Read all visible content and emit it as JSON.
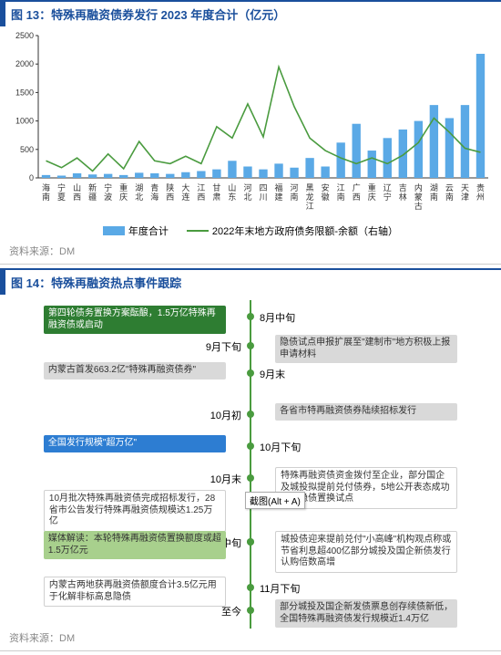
{
  "fig13": {
    "title": "图 13：特殊再融资债券发行 2023 年度合计（亿元）",
    "source": "资料来源：DM",
    "chart": {
      "type": "bar+line",
      "categories": [
        "海南",
        "宁夏",
        "山西",
        "新疆",
        "宁波",
        "重庆",
        "湖北",
        "青海",
        "陕西",
        "大连",
        "江西",
        "甘肃",
        "山东",
        "河北",
        "四川",
        "福建",
        "河南",
        "黑龙江",
        "安徽",
        "江南",
        "广西",
        "重庆",
        "辽宁",
        "吉林",
        "内蒙古",
        "湖南",
        "云南",
        "天津",
        "贵州"
      ],
      "bar_values": [
        50,
        40,
        80,
        60,
        70,
        50,
        90,
        80,
        70,
        100,
        120,
        150,
        300,
        200,
        150,
        250,
        180,
        350,
        200,
        620,
        950,
        480,
        700,
        850,
        1000,
        1280,
        1050,
        1280,
        2180
      ],
      "line_values": [
        300,
        180,
        350,
        120,
        420,
        160,
        640,
        300,
        250,
        380,
        250,
        900,
        700,
        1300,
        720,
        1950,
        1250,
        700,
        480,
        350,
        250,
        350,
        250,
        400,
        620,
        1050,
        800,
        520,
        450
      ],
      "bar_color": "#5aa9e6",
      "line_color": "#4a9b3f",
      "ylim": [
        0,
        2500
      ],
      "ytick_step": 500,
      "label_fontsize": 9,
      "axis_color": "#333",
      "grid": false
    },
    "legend": {
      "bar": "年度合计",
      "line": "2022年末地方政府债务限额-余额（右轴）"
    }
  },
  "fig14": {
    "title": "图 14：特殊再融资热点事件跟踪",
    "source": "资料来源：DM",
    "timeline": {
      "line_color": "#4a9b3f",
      "node_color": "#4a9b3f",
      "events": [
        {
          "y": 18,
          "date": "8月中旬",
          "date_side": "right",
          "box_side": "left",
          "style": "box-darkgreen",
          "text": "第四轮债务置换方案酝酿，1.5万亿特殊再融资债或启动"
        },
        {
          "y": 50,
          "date": "9月下旬",
          "date_side": "left",
          "box_side": "right",
          "style": "box-gray",
          "text": "隐债试点申报扩展至\"建制市\"地方积极上报申请材料"
        },
        {
          "y": 80,
          "date": "9月末",
          "date_side": "right",
          "box_side": "left",
          "style": "box-gray",
          "text": "内蒙古首发663.2亿\"特殊再融资债券\""
        },
        {
          "y": 125,
          "date": "10月初",
          "date_side": "left",
          "box_side": "right",
          "style": "box-gray",
          "text": "各省市特再融资债券陆续招标发行"
        },
        {
          "y": 160,
          "date": "10月下旬",
          "date_side": "right",
          "box_side": "left",
          "style": "box-blue",
          "text": "全国发行规模\"超万亿\""
        },
        {
          "y": 195,
          "date": "10月末",
          "date_side": "left",
          "box_side": "right",
          "style": "box-white",
          "text": "特殊再融资债资金拨付至企业，部分国企及城投拟提前兑付债券，5地公开表态成功纳入隐债置换试点"
        },
        {
          "y": 220,
          "date": "",
          "date_side": "right",
          "box_side": "left",
          "style": "box-white",
          "text": "10月批次特殊再融资债完成招标发行，28省市公告发行特殊再融资债规模达1.25万亿"
        },
        {
          "y": 265,
          "date": "11月中旬",
          "date_side": "left",
          "box_side": "right",
          "style": "box-white",
          "text": "城投债迎来提前兑付\"小高峰\"机构观点称或节省利息超400亿部分城投及国企新债发行认购倍数高增"
        },
        {
          "y": 265,
          "date": "",
          "date_side": "right",
          "box_side": "left",
          "style": "box-lightgreen",
          "text": "媒体解读：本轮特殊再融资债置换额度或超1.5万亿元"
        },
        {
          "y": 315,
          "date": "11月下旬",
          "date_side": "right",
          "box_side": "left",
          "style": "box-white",
          "text": "内蒙古两地获再融资债额度合计3.5亿元用于化解非标高息隐债"
        },
        {
          "y": 340,
          "date": "至今",
          "date_side": "left",
          "box_side": "right",
          "style": "box-gray",
          "text": "部分城投及国企新发债票息创存续债新低，全国特殊再融资债发行规模近1.4万亿"
        }
      ]
    },
    "screenshot_hint": "截图(Alt + A)"
  }
}
